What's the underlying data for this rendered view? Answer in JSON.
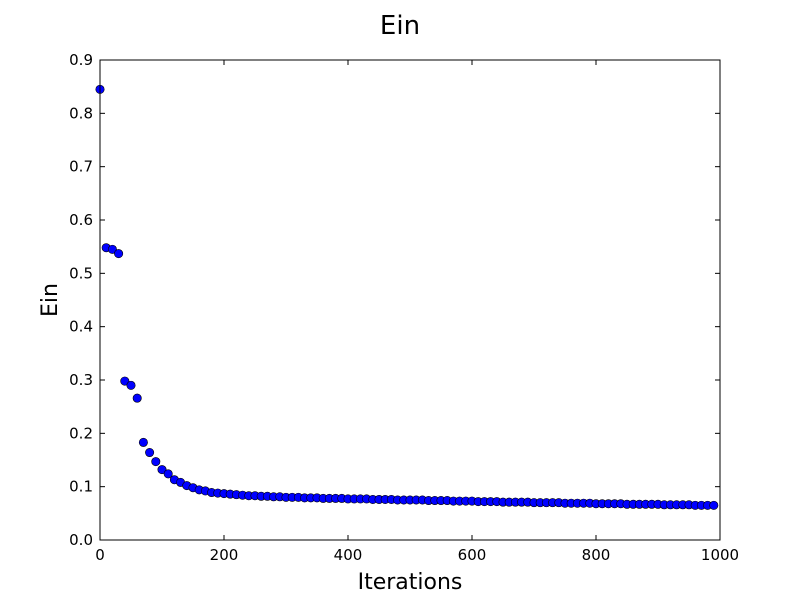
{
  "chart_data": {
    "type": "scatter",
    "title": "Ein",
    "xlabel": "Iterations",
    "ylabel": "Ein",
    "xlim": [
      0,
      1000
    ],
    "ylim": [
      0,
      0.9
    ],
    "xticks": [
      "0",
      "200",
      "400",
      "600",
      "800",
      "1000"
    ],
    "yticks": [
      "0.0",
      "0.1",
      "0.2",
      "0.3",
      "0.4",
      "0.5",
      "0.6",
      "0.7",
      "0.8",
      "0.9"
    ],
    "grid": false,
    "marker_color": "#0000ff",
    "marker_edge_color": "#000000",
    "series": [
      {
        "x": [
          0,
          10,
          20,
          30,
          40,
          50,
          60,
          70,
          80,
          90,
          100,
          110,
          120,
          130,
          140,
          150,
          160,
          170,
          180,
          190,
          200,
          210,
          220,
          230,
          240,
          250,
          260,
          270,
          280,
          290,
          300,
          310,
          320,
          330,
          340,
          350,
          360,
          370,
          380,
          390,
          400,
          410,
          420,
          430,
          440,
          450,
          460,
          470,
          480,
          490,
          500,
          510,
          520,
          530,
          540,
          550,
          560,
          570,
          580,
          590,
          600,
          610,
          620,
          630,
          640,
          650,
          660,
          670,
          680,
          690,
          700,
          710,
          720,
          730,
          740,
          750,
          760,
          770,
          780,
          790,
          800,
          810,
          820,
          830,
          840,
          850,
          860,
          870,
          880,
          890,
          900,
          910,
          920,
          930,
          940,
          950,
          960,
          970,
          980,
          990
        ],
        "y": [
          0.845,
          0.548,
          0.545,
          0.537,
          0.298,
          0.29,
          0.266,
          0.183,
          0.164,
          0.147,
          0.132,
          0.124,
          0.113,
          0.108,
          0.102,
          0.098,
          0.094,
          0.092,
          0.089,
          0.088,
          0.087,
          0.086,
          0.085,
          0.084,
          0.083,
          0.083,
          0.082,
          0.082,
          0.081,
          0.081,
          0.08,
          0.08,
          0.08,
          0.079,
          0.079,
          0.079,
          0.078,
          0.078,
          0.078,
          0.078,
          0.077,
          0.077,
          0.077,
          0.077,
          0.076,
          0.076,
          0.076,
          0.076,
          0.075,
          0.075,
          0.075,
          0.075,
          0.075,
          0.074,
          0.074,
          0.074,
          0.074,
          0.073,
          0.073,
          0.073,
          0.073,
          0.072,
          0.072,
          0.072,
          0.072,
          0.071,
          0.071,
          0.071,
          0.071,
          0.071,
          0.07,
          0.07,
          0.07,
          0.07,
          0.07,
          0.069,
          0.069,
          0.069,
          0.069,
          0.069,
          0.068,
          0.068,
          0.068,
          0.068,
          0.068,
          0.067,
          0.067,
          0.067,
          0.067,
          0.067,
          0.067,
          0.066,
          0.066,
          0.066,
          0.066,
          0.066,
          0.065,
          0.065,
          0.065,
          0.065
        ]
      }
    ]
  }
}
